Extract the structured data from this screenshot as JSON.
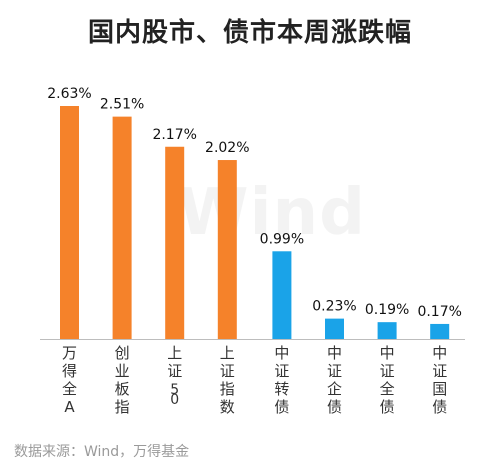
{
  "title": "国内股市、债市本周涨跌幅",
  "watermark": "Wind",
  "source": "数据来源：Wind，万得基金",
  "colors": {
    "equity": "#F5822A",
    "bond": "#1AA3E8",
    "axis": "#bdbdbd",
    "label": "#111111",
    "tick": "#333333"
  },
  "chart_data": {
    "type": "bar",
    "categories": [
      "万得全A",
      "创业板指",
      "上证50",
      "上证指数",
      "中证转债",
      "中证企债",
      "中证全债",
      "中证国债"
    ],
    "values": [
      2.63,
      2.51,
      2.17,
      2.02,
      0.99,
      0.23,
      0.19,
      0.17
    ],
    "value_labels": [
      "2.63%",
      "2.51%",
      "2.17%",
      "2.02%",
      "0.99%",
      "0.23%",
      "0.19%",
      "0.17%"
    ],
    "groups": [
      "equity",
      "equity",
      "equity",
      "equity",
      "bond",
      "bond",
      "bond",
      "bond"
    ],
    "ylim": [
      0,
      2.63
    ],
    "grid": false,
    "legend": "none"
  }
}
